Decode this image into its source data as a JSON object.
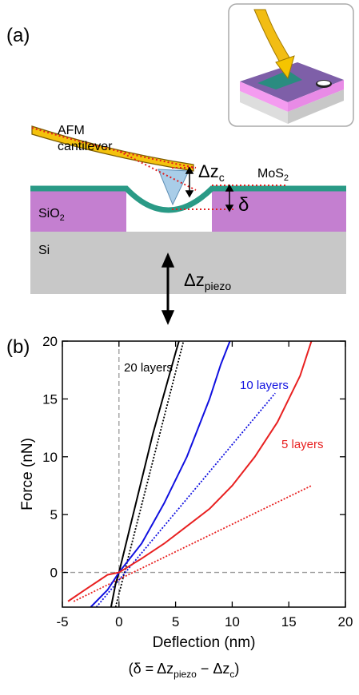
{
  "diagram": {
    "panel": "(a)",
    "cantilever_label": [
      "AFM",
      "cantilever"
    ],
    "mos2": [
      "MoS",
      "2"
    ],
    "sio2": [
      "SiO",
      "2"
    ],
    "si": "Si",
    "dz_c": [
      "Δz",
      "c"
    ],
    "delta": "δ",
    "dz_piezo": [
      "Δz",
      "piezo"
    ]
  },
  "chart_data": {
    "type": "line",
    "panel": "(b)",
    "x_label": "Deflection (nm)",
    "y_label": "Force (nN)",
    "note": [
      "(δ = Δz",
      "piezo",
      " − Δz",
      "c",
      ")"
    ],
    "xlim": [
      -5,
      20
    ],
    "ylim": [
      -3,
      20
    ],
    "xticks": [
      -5,
      0,
      5,
      10,
      15,
      20
    ],
    "yticks": [
      0,
      5,
      10,
      15,
      20
    ],
    "zero_lines": true,
    "series": [
      {
        "name": "20 layers",
        "color": "#000000",
        "x": [
          -0.7,
          -0.3,
          0,
          1,
          2,
          3,
          4,
          5,
          5.3
        ],
        "values": [
          -3,
          -1,
          0,
          4,
          8,
          12,
          15.5,
          19,
          20
        ]
      },
      {
        "name": "10 layers",
        "color": "#1010e0",
        "x": [
          -2.5,
          -1,
          0,
          2,
          4,
          6,
          7,
          8,
          9,
          9.8
        ],
        "values": [
          -3,
          -1.5,
          0,
          2.5,
          6,
          10,
          12.5,
          15,
          18,
          20
        ]
      },
      {
        "name": "5 layers",
        "color": "#e82020",
        "x": [
          -4.5,
          -3,
          -1,
          0,
          2,
          4,
          6,
          8,
          10,
          12,
          14,
          16,
          17
        ],
        "values": [
          -2.5,
          -1.5,
          -0.2,
          0,
          1.2,
          2.5,
          4,
          5.5,
          7.5,
          10,
          13,
          17,
          20
        ]
      }
    ],
    "fits": [
      {
        "color": "#000000",
        "x": [
          -0.3,
          5.7
        ],
        "values": [
          -3,
          20
        ]
      },
      {
        "color": "#1010e0",
        "x": [
          -2,
          13.8
        ],
        "values": [
          -3,
          15.5
        ]
      },
      {
        "color": "#e82020",
        "x": [
          -4,
          17
        ],
        "values": [
          -2.5,
          7.5
        ]
      }
    ]
  }
}
